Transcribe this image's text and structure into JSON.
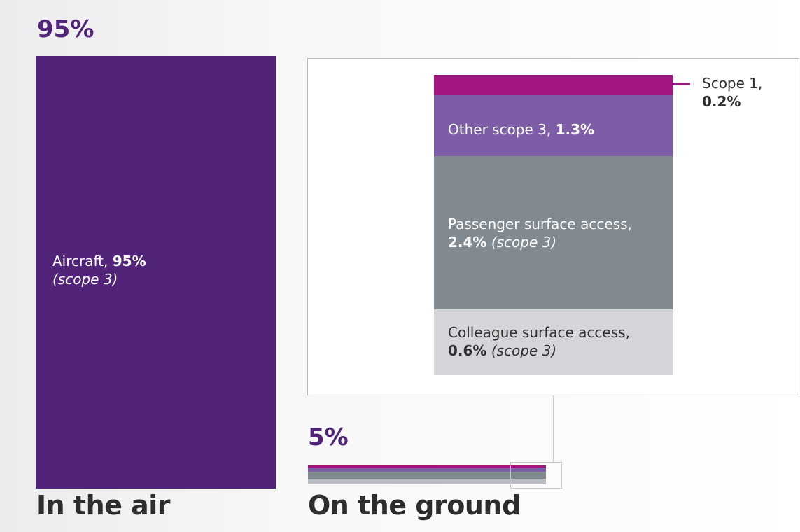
{
  "chart_data": {
    "type": "bar",
    "title": "",
    "groups": [
      {
        "name": "In the air",
        "total_percent": "95%",
        "segments": [
          {
            "label": "Aircraft",
            "value": 95,
            "value_label": "95%",
            "note": "(scope 3)",
            "color": "#51247a"
          }
        ]
      },
      {
        "name": "On the ground",
        "total_percent": "5%",
        "segments": [
          {
            "label": "Scope 1",
            "value": 0.2,
            "value_label": "0.2%",
            "note": "",
            "color": "#a1167f"
          },
          {
            "label": "Other scope 3",
            "value": 1.3,
            "value_label": "1.3%",
            "note": "",
            "color": "#7d5ea6"
          },
          {
            "label": "Passenger surface access",
            "value": 2.4,
            "value_label": "2.4%",
            "note": "(scope 3)",
            "color": "#818a91"
          },
          {
            "label": "Colleague surface access",
            "value": 0.6,
            "value_label": "0.6%",
            "note": "(scope 3)",
            "color": "#d3d5d8"
          }
        ]
      }
    ]
  },
  "labels": {
    "air_total": "95%",
    "ground_total": "5%",
    "air_footer": "In the air",
    "ground_footer": "On the ground",
    "aircraft_name": "Aircraft,",
    "aircraft_value": "95%",
    "aircraft_note": "(scope 3)",
    "scope1_name": "Scope 1,",
    "scope1_value": "0.2%",
    "other_name": "Other scope 3,",
    "other_value": "1.3%",
    "passenger_name": "Passenger surface access,",
    "passenger_value": "2.4%",
    "passenger_note": "(scope 3)",
    "colleague_name": "Colleague surface access,",
    "colleague_value": "0.6%",
    "colleague_note": "(scope 3)"
  }
}
